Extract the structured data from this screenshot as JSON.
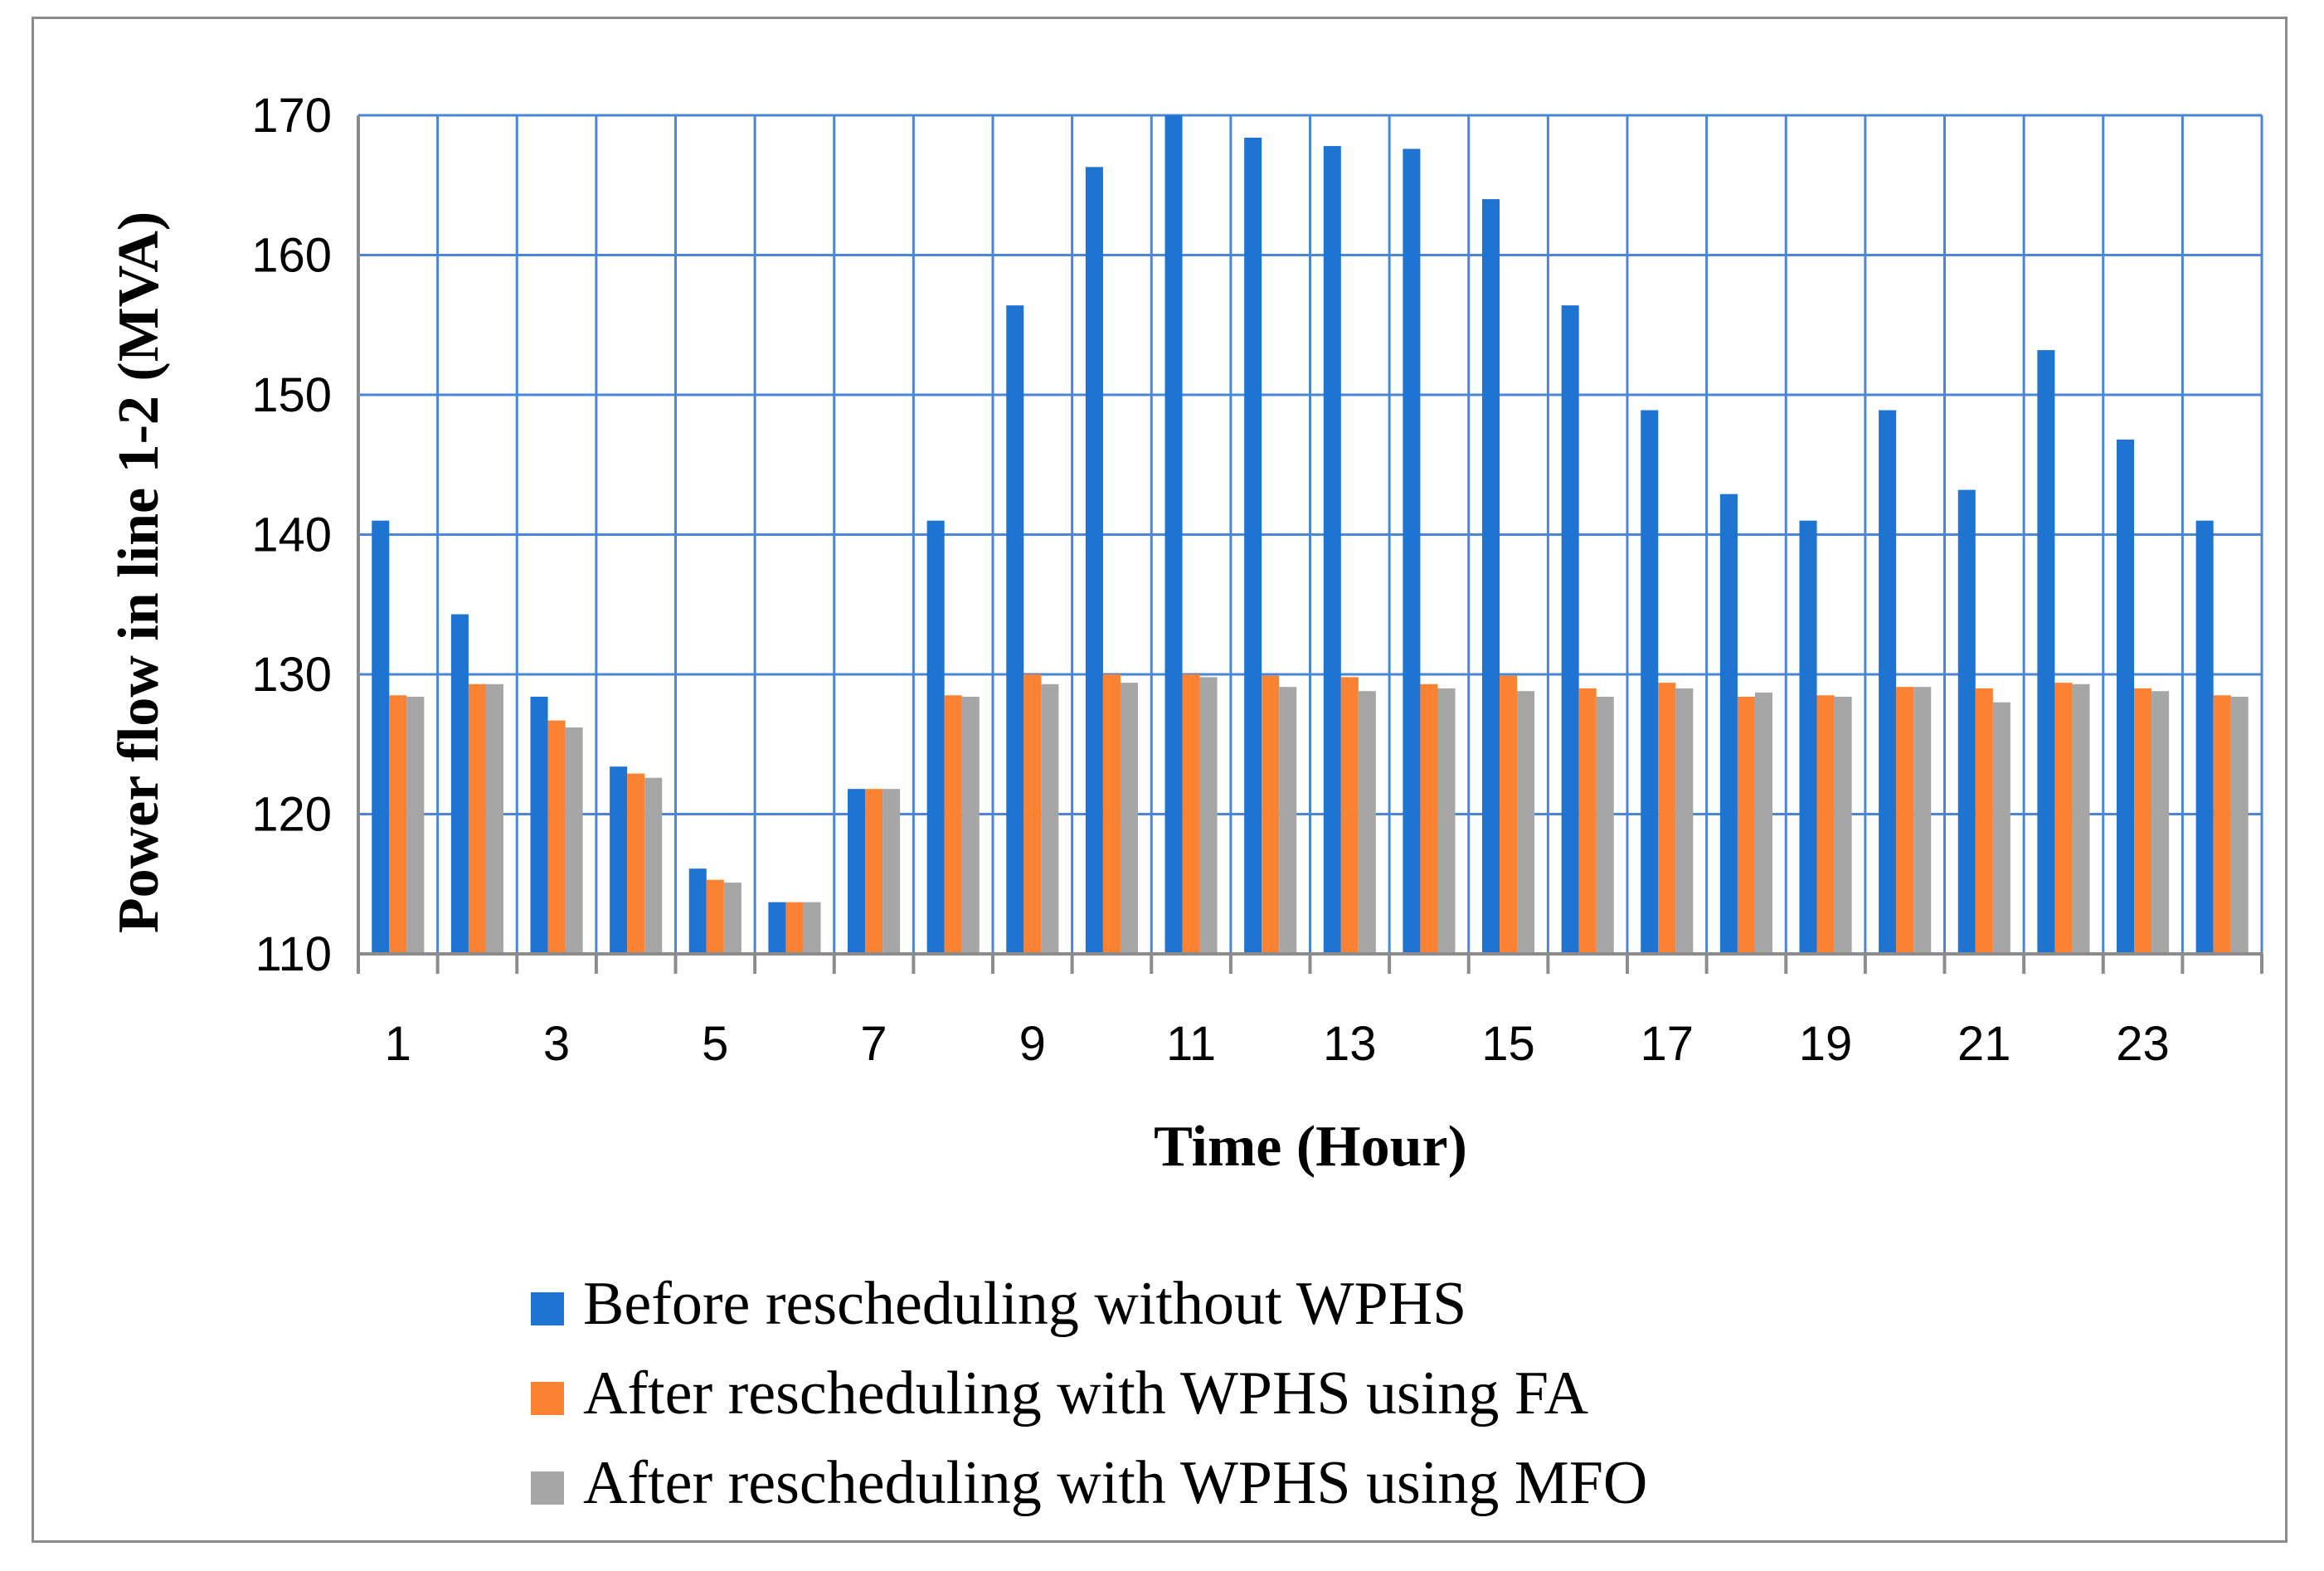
{
  "chart_data": {
    "type": "bar",
    "title": "",
    "xlabel": "Time (Hour)",
    "ylabel": "Power flow in line 1-2 (MVA)",
    "ylim": [
      110,
      170
    ],
    "yticks": [
      110,
      120,
      130,
      140,
      150,
      160,
      170
    ],
    "grid": true,
    "legend_position": "bottom",
    "categories": [
      1,
      2,
      3,
      4,
      5,
      6,
      7,
      8,
      9,
      10,
      11,
      12,
      13,
      14,
      15,
      16,
      17,
      18,
      19,
      20,
      21,
      22,
      23,
      24
    ],
    "xtick_labels": [
      "1",
      "",
      "3",
      "",
      "5",
      "",
      "7",
      "",
      "9",
      "",
      "11",
      "",
      "13",
      "",
      "15",
      "",
      "17",
      "",
      "19",
      "",
      "21",
      "",
      "23",
      ""
    ],
    "series": [
      {
        "name": "Before rescheduling without WPHS",
        "color": "#1f73d1",
        "values": [
          141,
          134.3,
          128.4,
          123.4,
          116.1,
          113.7,
          121.8,
          141,
          156.4,
          166.3,
          170.1,
          168.4,
          167.8,
          167.6,
          164,
          156.4,
          148.9,
          142.9,
          141,
          148.9,
          143.2,
          153.2,
          146.8,
          141
        ]
      },
      {
        "name": "After rescheduling with WPHS using FA",
        "color": "#fb8232",
        "values": [
          128.5,
          129.3,
          126.7,
          122.9,
          115.3,
          113.7,
          121.8,
          128.5,
          130,
          130,
          130,
          129.9,
          129.8,
          129.3,
          129.9,
          129,
          129.4,
          128.4,
          128.5,
          129.1,
          129,
          129.4,
          129,
          128.5
        ]
      },
      {
        "name": "After rescheduling with WPHS using MFO",
        "color": "#a6a6a6",
        "values": [
          128.4,
          129.3,
          126.2,
          122.6,
          115.1,
          113.7,
          121.8,
          128.4,
          129.3,
          129.4,
          129.8,
          129.1,
          128.8,
          129,
          128.8,
          128.4,
          129,
          128.7,
          128.4,
          129.1,
          128,
          129.3,
          128.8,
          128.4
        ]
      }
    ]
  }
}
